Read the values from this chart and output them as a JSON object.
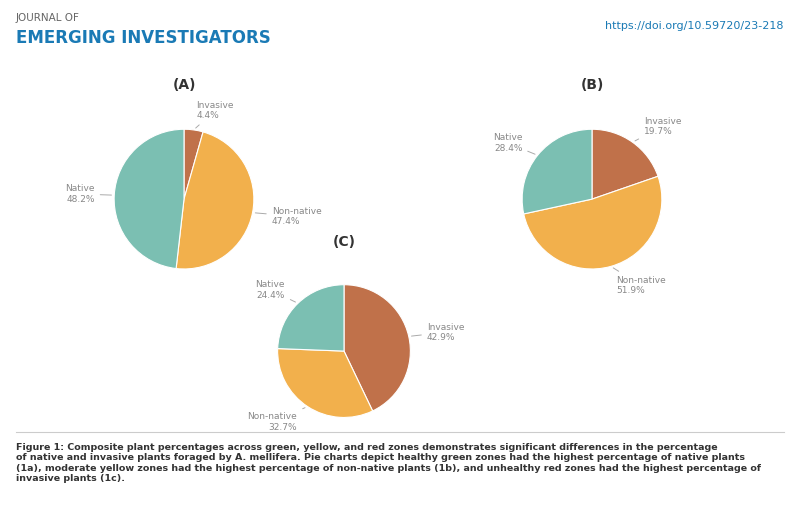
{
  "charts": [
    {
      "title": "(A)",
      "labels": [
        "Invasive",
        "Non-native",
        "Native"
      ],
      "values": [
        4.4,
        47.4,
        48.2
      ],
      "colors": [
        "#C0714A",
        "#F2B04C",
        "#7BBFB2"
      ]
    },
    {
      "title": "(B)",
      "labels": [
        "Invasive",
        "Non-native",
        "Native"
      ],
      "values": [
        19.7,
        51.9,
        28.4
      ],
      "colors": [
        "#C0714A",
        "#F2B04C",
        "#7BBFB2"
      ]
    },
    {
      "title": "(C)",
      "labels": [
        "Invasive",
        "Non-native",
        "Native"
      ],
      "values": [
        42.9,
        32.7,
        24.4
      ],
      "colors": [
        "#C0714A",
        "#F2B04C",
        "#7BBFB2"
      ]
    }
  ],
  "header_line1": "JOURNAL OF",
  "header_line2": "EMERGING INVESTIGATORS",
  "doi_text": "https://doi.org/10.59720/23-218",
  "caption_bold": "Figure 1: Composite plant percentages across green, yellow, and red zones demonstrates significant differences in the percentage of native and invasive plants foraged by ",
  "caption_italic": "A. mellifera.",
  "caption_normal": " Pie charts depict healthy green zones had the highest percentage of native plants (1a), moderate yellow zones had the highest percentage of non-native plants (1b), and unhealthy red zones had the highest percentage of invasive plants (1c).",
  "background_color": "#FFFFFF",
  "label_color": "#888888",
  "title_color": "#333333",
  "header1_color": "#666666",
  "header2_color": "#1A7AB5",
  "doi_color": "#1A7AB5",
  "line_color": "#CCCCCC",
  "caption_color": "#333333"
}
